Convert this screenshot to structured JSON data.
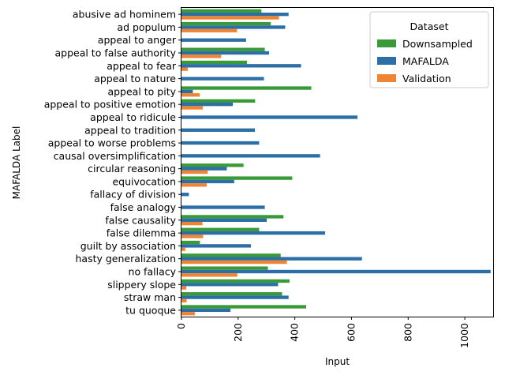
{
  "chart_data": {
    "type": "bar",
    "orientation": "horizontal",
    "xlabel": "Input",
    "ylabel": "MAFALDA Label",
    "xlim": [
      0,
      1100
    ],
    "xticks": [
      0,
      200,
      400,
      600,
      800,
      1000
    ],
    "grid": false,
    "legend": {
      "title": "Dataset",
      "placement": "top-right"
    },
    "categories": [
      "abusive ad hominem",
      "ad populum",
      "appeal to anger",
      "appeal to false authority",
      "appeal to fear",
      "appeal to nature",
      "appeal to pity",
      "appeal to positive emotion",
      "appeal to ridicule",
      "appeal to tradition",
      "appeal to worse problems",
      "causal oversimplification",
      "circular reasoning",
      "equivocation",
      "fallacy of division",
      "false analogy",
      "false causality",
      "false dilemma",
      "guilt by association",
      "hasty generalization",
      "no fallacy",
      "slippery slope",
      "straw man",
      "tu quoque"
    ],
    "series": [
      {
        "name": "Downsampled",
        "color": "#3a9a3a",
        "values": [
          282,
          315,
          0,
          294,
          231,
          0,
          458,
          260,
          0,
          0,
          0,
          0,
          219,
          391,
          0,
          0,
          360,
          274,
          65,
          350,
          305,
          381,
          355,
          440
        ]
      },
      {
        "name": "MAFALDA",
        "color": "#2c6fa6",
        "values": [
          378,
          366,
          228,
          309,
          422,
          291,
          40,
          181,
          621,
          259,
          274,
          489,
          160,
          186,
          26,
          294,
          301,
          507,
          245,
          637,
          1091,
          341,
          378,
          173
        ]
      },
      {
        "name": "Validation",
        "color": "#ef8532",
        "values": [
          344,
          196,
          0,
          140,
          22,
          0,
          64,
          75,
          0,
          0,
          0,
          0,
          92,
          89,
          0,
          0,
          74,
          76,
          13,
          372,
          197,
          17,
          18,
          47
        ]
      }
    ]
  }
}
